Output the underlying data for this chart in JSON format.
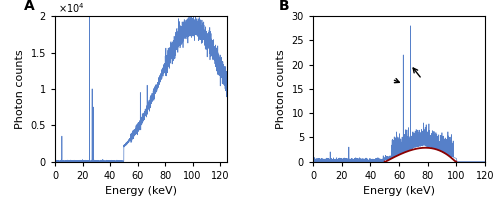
{
  "panel_A": {
    "title": "A",
    "xlabel": "Energy (keV)",
    "ylabel": "Photon counts",
    "xlim": [
      0,
      125
    ],
    "ylim": [
      0,
      20000
    ],
    "yticks": [
      0,
      5000,
      10000,
      15000,
      20000
    ],
    "ytick_labels": [
      "0",
      "0.5",
      "1",
      "1.5",
      "2"
    ],
    "xticks": [
      0,
      20,
      40,
      60,
      80,
      100,
      120
    ],
    "color": "#4472c4",
    "scale_label": "×10⁴"
  },
  "panel_B": {
    "title": "B",
    "xlabel": "Energy (keV)",
    "ylabel": "Photon counts",
    "xlim": [
      0,
      120
    ],
    "ylim": [
      0,
      30
    ],
    "yticks": [
      0,
      5,
      10,
      15,
      20,
      25,
      30
    ],
    "xticks": [
      0,
      20,
      40,
      60,
      80,
      100,
      120
    ],
    "color": "#4472c4",
    "fit_color": "#8b0000"
  }
}
